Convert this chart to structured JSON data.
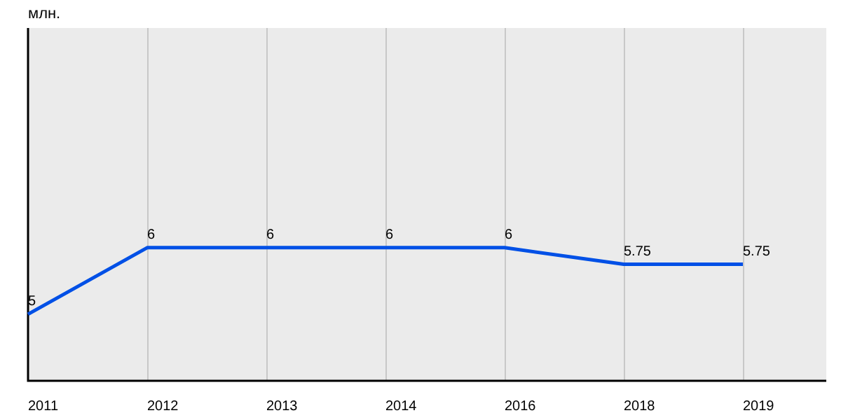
{
  "chart_data": {
    "type": "line",
    "ylabel": "млн.",
    "categories": [
      "2011",
      "2012",
      "2013",
      "2014",
      "2016",
      "2018",
      "2019"
    ],
    "series": [
      {
        "color": "#0050e6",
        "values": [
          5,
          6,
          6,
          6,
          6,
          5.75,
          5.75
        ]
      }
    ],
    "ylim": [
      4,
      9.3
    ],
    "grid": "x",
    "legend": false,
    "data_labels": true,
    "marker": "none",
    "line_style": "solid"
  }
}
